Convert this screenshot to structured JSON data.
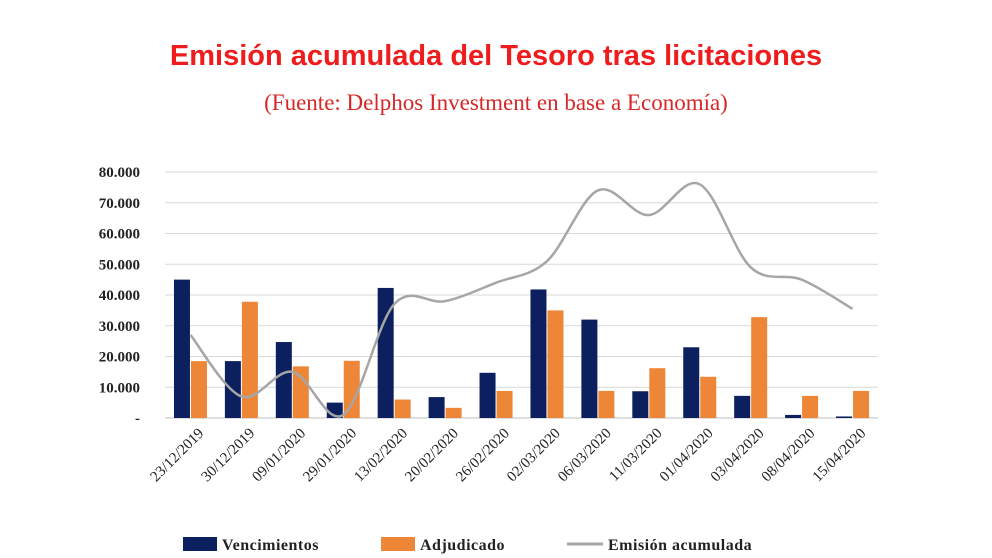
{
  "header": {
    "title": "Emisión acumulada del Tesoro tras licitaciones",
    "subtitle": "(Fuente: Delphos Investment en base a Economía)"
  },
  "colors": {
    "title": "#ee1c1c",
    "vencimientos": "#0c1f5e",
    "adjudicado": "#ee8638",
    "emision": "#a6a6a6",
    "grid": "#d9d9d9"
  },
  "chart_data": {
    "type": "bar",
    "title": "Emisión acumulada del Tesoro tras licitaciones",
    "subtitle": "(Fuente: Delphos Investment en base a Economía)",
    "categories": [
      "23/12/2019",
      "30/12/2019",
      "09/01/2020",
      "29/01/2020",
      "13/02/2020",
      "20/02/2020",
      "26/02/2020",
      "02/03/2020",
      "06/03/2020",
      "11/03/2020",
      "01/04/2020",
      "03/04/2020",
      "08/04/2020",
      "15/04/2020"
    ],
    "y_ticks": [
      "-",
      "10.000",
      "20.000",
      "30.000",
      "40.000",
      "50.000",
      "60.000",
      "70.000",
      "80.000"
    ],
    "ylim": [
      0,
      80000
    ],
    "grid": true,
    "legend_position": "bottom",
    "series": [
      {
        "name": "Vencimientos",
        "type": "bar",
        "values": [
          45000,
          18500,
          24700,
          5000,
          42300,
          6800,
          14700,
          41800,
          32000,
          8700,
          23000,
          7200,
          1000,
          500
        ]
      },
      {
        "name": "Adjudicado",
        "type": "bar",
        "values": [
          18500,
          37800,
          16800,
          18600,
          6000,
          3300,
          8800,
          35000,
          8800,
          16200,
          13400,
          32800,
          7200,
          8800
        ]
      },
      {
        "name": "Emisión acumulada",
        "type": "line",
        "values": [
          27000,
          7000,
          15000,
          1000,
          37000,
          38000,
          44000,
          51000,
          74000,
          66000,
          76000,
          49000,
          45000,
          35500
        ]
      }
    ]
  }
}
